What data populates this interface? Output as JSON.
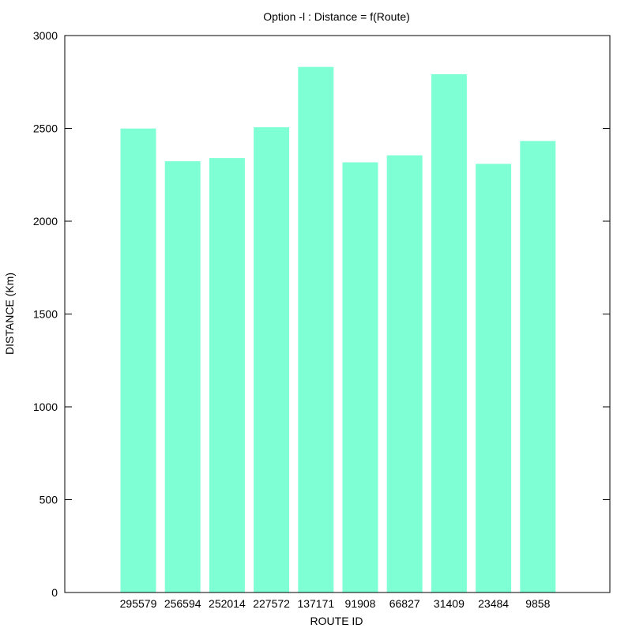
{
  "chart_data": {
    "type": "bar",
    "title": "Option -l : Distance = f(Route)",
    "xlabel": "ROUTE ID",
    "ylabel": "DISTANCE (Km)",
    "categories": [
      "295579",
      "256594",
      "252014",
      "227572",
      "137171",
      "91908",
      "66827",
      "31409",
      "23484",
      "9858"
    ],
    "values": [
      2499,
      2323,
      2340,
      2506,
      2831,
      2317,
      2355,
      2792,
      2309,
      2432
    ],
    "ylim": [
      0,
      3000
    ],
    "yticks": [
      0,
      500,
      1000,
      1500,
      2000,
      2500,
      3000
    ],
    "bar_color": "#7fffd4",
    "grid": false,
    "legend": "none"
  }
}
